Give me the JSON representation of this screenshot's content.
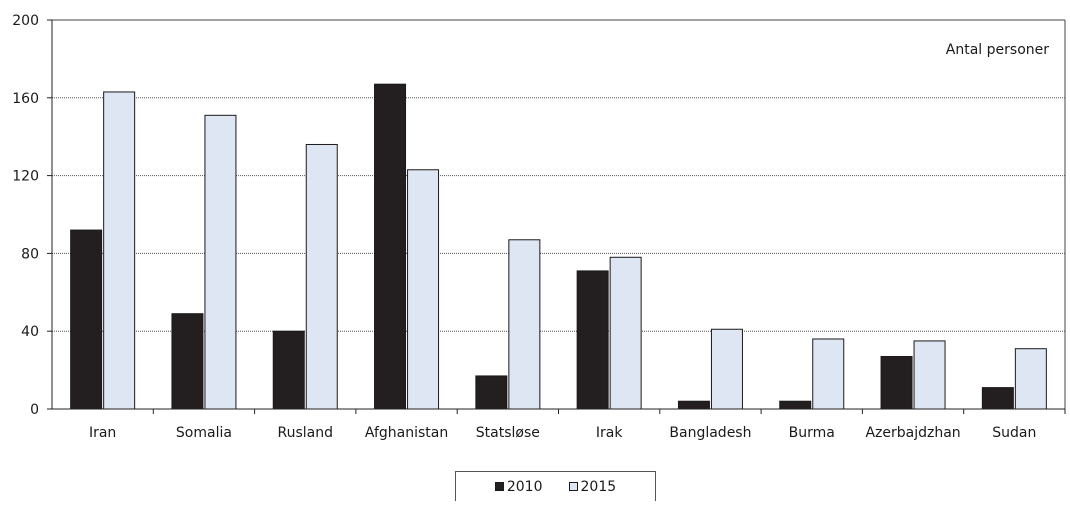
{
  "chart_data": {
    "type": "bar",
    "annotation": "Antal personer",
    "categories": [
      "Iran",
      "Somalia",
      "Rusland",
      "Afghanistan",
      "Statsløse",
      "Irak",
      "Bangladesh",
      "Burma",
      "Azerbajdzhan",
      "Sudan"
    ],
    "series": [
      {
        "name": "2010",
        "color": "#231f20",
        "values": [
          92,
          49,
          40,
          167,
          17,
          71,
          4,
          4,
          27,
          11
        ]
      },
      {
        "name": "2015",
        "color": "#dde6f2",
        "values": [
          163,
          151,
          136,
          123,
          87,
          78,
          41,
          36,
          35,
          31
        ]
      }
    ],
    "ylim": [
      0,
      200
    ],
    "yticks": [
      0,
      40,
      80,
      120,
      160,
      200
    ],
    "grid": true,
    "legend_position": "bottom"
  }
}
